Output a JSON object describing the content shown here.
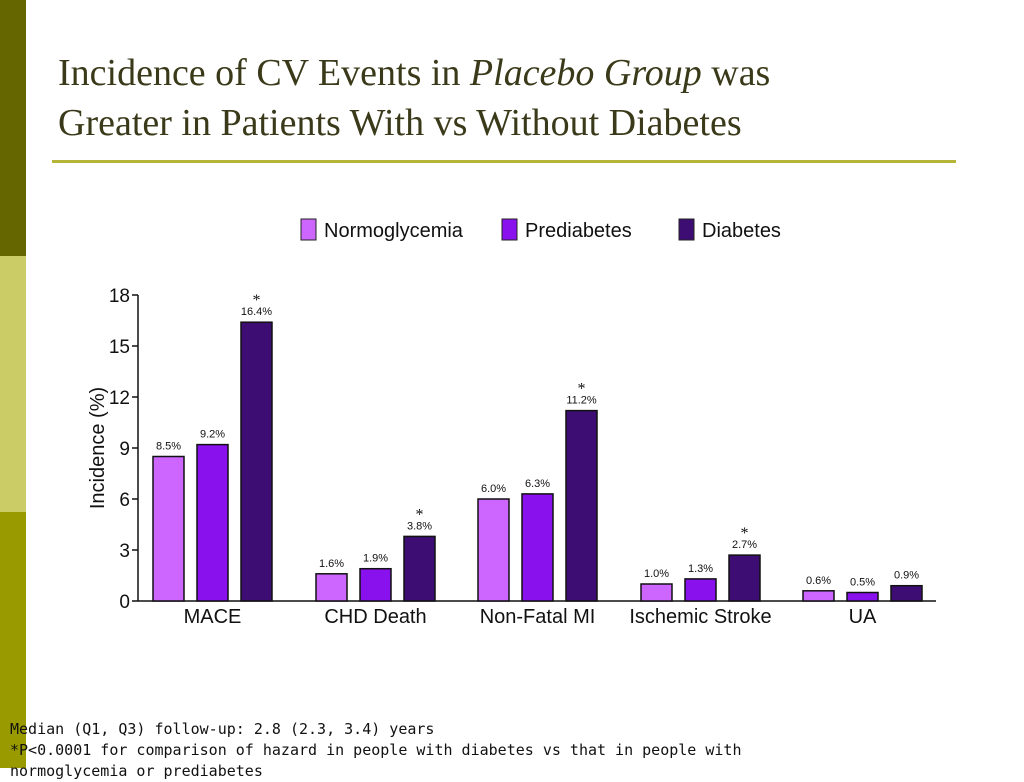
{
  "slide": {
    "title_line1_a": "Incidence of CV Events in ",
    "title_line1_italic": "Placebo Group",
    "title_line1_b": " was",
    "title_line2": "Greater in Patients With vs Without Diabetes",
    "footnotes": [
      "Median (Q1, Q3) follow-up: 2.8 (2.3, 3.4) years",
      "*P<0.0001 for comparison of hazard in people with diabetes vs that in people with",
      "normoglycemia or prediabetes"
    ]
  },
  "colors": {
    "sidebar_top": "#666600",
    "sidebar_mid": "#cccc66",
    "sidebar_bot": "#999900",
    "rule": "#b5b53a",
    "series": [
      "#cc66ff",
      "#8811ee",
      "#3d0d73"
    ]
  },
  "chart_data": {
    "type": "bar",
    "ylabel": "Incidence (%)",
    "xlabel": "",
    "ylim": [
      0,
      18
    ],
    "yticks": [
      "0",
      "3",
      "6",
      "9",
      "12",
      "15",
      "18"
    ],
    "categories": [
      "MACE",
      "CHD Death",
      "Non-Fatal MI",
      "Ischemic Stroke",
      "UA"
    ],
    "series": [
      {
        "name": "Normoglycemia",
        "values": [
          8.5,
          1.6,
          6.0,
          1.0,
          0.6
        ],
        "labels": [
          "8.5%",
          "1.6%",
          "6.0%",
          "1.0%",
          "0.6%"
        ]
      },
      {
        "name": "Prediabetes",
        "values": [
          9.2,
          1.9,
          6.3,
          1.3,
          0.5
        ],
        "labels": [
          "9.2%",
          "1.9%",
          "6.3%",
          "1.3%",
          "0.5%"
        ]
      },
      {
        "name": "Diabetes",
        "values": [
          16.4,
          3.8,
          11.2,
          2.7,
          0.9
        ],
        "labels": [
          "16.4%",
          "3.8%",
          "11.2%",
          "2.7%",
          "0.9%"
        ]
      }
    ],
    "significance_marker": "*",
    "significant": [
      [
        false,
        false,
        true
      ],
      [
        false,
        false,
        true
      ],
      [
        false,
        false,
        true
      ],
      [
        false,
        false,
        true
      ],
      [
        false,
        false,
        false
      ]
    ],
    "legend_position": "top"
  }
}
